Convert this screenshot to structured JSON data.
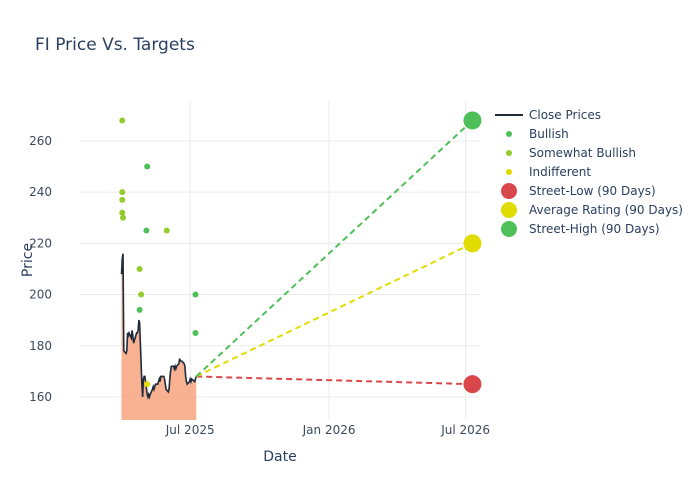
{
  "chart_data": {
    "type": "line",
    "title": "FI Price Vs. Targets",
    "xlabel": "Date",
    "ylabel": "Price",
    "x_ticks": [
      {
        "date": "2025-07-01",
        "label": "Jul 2025"
      },
      {
        "date": "2026-01-01",
        "label": "Jan 2026"
      },
      {
        "date": "2026-07-01",
        "label": "Jul 2026"
      }
    ],
    "y_ticks": [
      160,
      180,
      200,
      220,
      240,
      260
    ],
    "xlim": [
      "2025-02-05",
      "2026-07-20"
    ],
    "ylim": [
      151,
      276
    ],
    "grid": true,
    "legend_position": "right",
    "colors": {
      "close": "#1f2a3a",
      "fill": "#f7a47f",
      "bullish": "#4fbf5a",
      "somewhat_bullish": "#94cc2e",
      "indifferent": "#e0dc00",
      "street_low": "#d9474b",
      "average": "#e0dc00",
      "street_high": "#4fbf5a",
      "axis_text": "#3c4a5e",
      "grid": "#ebebeb"
    },
    "legend": [
      {
        "key": "close",
        "label": "Close Prices",
        "symbol": "line"
      },
      {
        "key": "bullish",
        "label": "Bullish",
        "symbol": "small"
      },
      {
        "key": "somewhat_bullish",
        "label": "Somewhat Bullish",
        "symbol": "small"
      },
      {
        "key": "indifferent",
        "label": "Indifferent",
        "symbol": "small"
      },
      {
        "key": "street_low",
        "label": "Street-Low (90 Days)",
        "symbol": "large"
      },
      {
        "key": "average",
        "label": "Average Rating (90 Days)",
        "symbol": "large"
      },
      {
        "key": "street_high",
        "label": "Street-High (90 Days)",
        "symbol": "large"
      }
    ],
    "close_prices": [
      [
        "2025-04-01",
        208
      ],
      [
        "2025-04-02",
        214
      ],
      [
        "2025-04-03",
        216
      ],
      [
        "2025-04-04",
        178
      ],
      [
        "2025-04-07",
        177
      ],
      [
        "2025-04-08",
        178
      ],
      [
        "2025-04-09",
        185
      ],
      [
        "2025-04-10",
        184
      ],
      [
        "2025-04-11",
        185
      ],
      [
        "2025-04-14",
        183
      ],
      [
        "2025-04-15",
        186
      ],
      [
        "2025-04-16",
        184
      ],
      [
        "2025-04-17",
        181
      ],
      [
        "2025-04-21",
        185
      ],
      [
        "2025-04-22",
        185
      ],
      [
        "2025-04-23",
        186
      ],
      [
        "2025-04-24",
        190
      ],
      [
        "2025-04-25",
        189
      ],
      [
        "2025-04-28",
        165
      ],
      [
        "2025-04-29",
        160
      ],
      [
        "2025-04-30",
        167
      ],
      [
        "2025-05-01",
        168
      ],
      [
        "2025-05-02",
        168
      ],
      [
        "2025-05-05",
        161
      ],
      [
        "2025-05-06",
        160
      ],
      [
        "2025-05-07",
        161
      ],
      [
        "2025-05-08",
        160
      ],
      [
        "2025-05-09",
        161
      ],
      [
        "2025-05-12",
        163
      ],
      [
        "2025-05-13",
        164
      ],
      [
        "2025-05-14",
        163
      ],
      [
        "2025-05-15",
        164
      ],
      [
        "2025-05-16",
        165
      ],
      [
        "2025-05-19",
        165
      ],
      [
        "2025-05-20",
        166
      ],
      [
        "2025-05-21",
        167
      ],
      [
        "2025-05-22",
        166
      ],
      [
        "2025-05-23",
        168
      ],
      [
        "2025-05-27",
        168
      ],
      [
        "2025-05-28",
        167
      ],
      [
        "2025-05-29",
        165
      ],
      [
        "2025-05-30",
        163
      ],
      [
        "2025-06-02",
        162
      ],
      [
        "2025-06-03",
        163
      ],
      [
        "2025-06-04",
        167
      ],
      [
        "2025-06-05",
        170
      ],
      [
        "2025-06-06",
        172
      ],
      [
        "2025-06-09",
        172
      ],
      [
        "2025-06-10",
        171
      ],
      [
        "2025-06-11",
        172
      ],
      [
        "2025-06-12",
        171
      ],
      [
        "2025-06-13",
        172
      ],
      [
        "2025-06-16",
        173
      ],
      [
        "2025-06-17",
        175
      ],
      [
        "2025-06-18",
        174
      ],
      [
        "2025-06-20",
        174
      ],
      [
        "2025-06-23",
        173
      ],
      [
        "2025-06-24",
        172
      ],
      [
        "2025-06-25",
        168
      ],
      [
        "2025-06-26",
        166
      ],
      [
        "2025-06-27",
        165
      ],
      [
        "2025-06-30",
        166
      ],
      [
        "2025-07-01",
        167
      ],
      [
        "2025-07-02",
        166
      ],
      [
        "2025-07-03",
        167
      ],
      [
        "2025-07-07",
        166
      ],
      [
        "2025-07-08",
        167
      ],
      [
        "2025-07-09",
        168
      ]
    ],
    "analyst_ratings": [
      {
        "date": "2025-04-02",
        "value": 268,
        "series": "somewhat_bullish"
      },
      {
        "date": "2025-04-02",
        "value": 240,
        "series": "somewhat_bullish"
      },
      {
        "date": "2025-04-02",
        "value": 237,
        "series": "somewhat_bullish"
      },
      {
        "date": "2025-04-02",
        "value": 232,
        "series": "somewhat_bullish"
      },
      {
        "date": "2025-04-03",
        "value": 230,
        "series": "somewhat_bullish"
      },
      {
        "date": "2025-04-25",
        "value": 210,
        "series": "somewhat_bullish"
      },
      {
        "date": "2025-04-27",
        "value": 200,
        "series": "somewhat_bullish"
      },
      {
        "date": "2025-04-25",
        "value": 194,
        "series": "bullish"
      },
      {
        "date": "2025-05-05",
        "value": 250,
        "series": "bullish"
      },
      {
        "date": "2025-05-04",
        "value": 225,
        "series": "bullish"
      },
      {
        "date": "2025-05-05",
        "value": 165,
        "series": "indifferent"
      },
      {
        "date": "2025-05-31",
        "value": 225,
        "series": "somewhat_bullish"
      },
      {
        "date": "2025-07-08",
        "value": 200,
        "series": "bullish"
      },
      {
        "date": "2025-07-08",
        "value": 185,
        "series": "bullish"
      }
    ],
    "targets": {
      "start": {
        "date": "2025-07-09",
        "value": 168
      },
      "end_date": "2026-07-10",
      "street_low": 165,
      "average": 220,
      "street_high": 268
    }
  }
}
